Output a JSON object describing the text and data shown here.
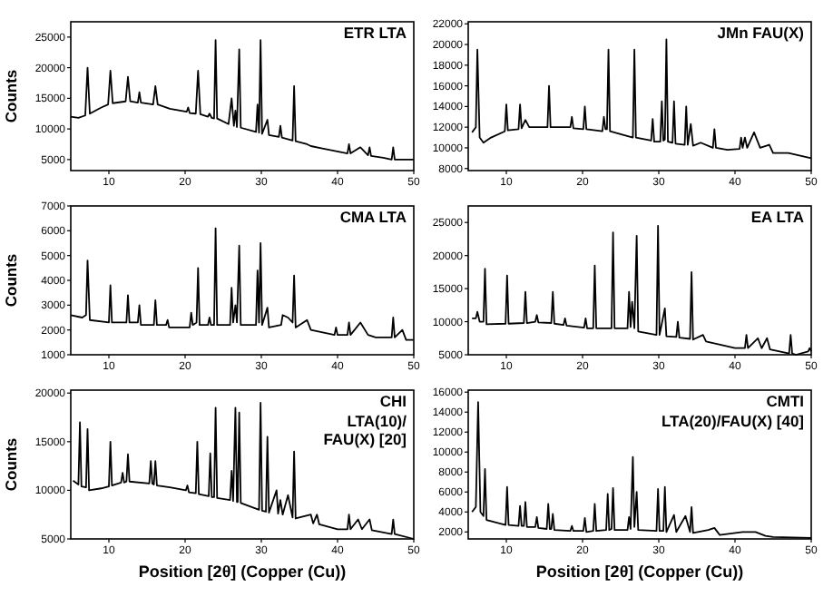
{
  "chart_data": [
    {
      "type": "line",
      "title": "ETR LTA",
      "ylabel": "Counts",
      "xlim": [
        5,
        50
      ],
      "xticks": [
        10,
        20,
        30,
        40,
        50
      ],
      "ylim": [
        3200,
        27500
      ],
      "yticks": [
        5000,
        10000,
        15000,
        20000,
        25000
      ],
      "grid": false,
      "series": [
        {
          "color": "#000000",
          "x": [
            5,
            6,
            6.9,
            7.2,
            7.5,
            9,
            9.9,
            10.2,
            10.5,
            12.2,
            12.5,
            12.8,
            13.8,
            14,
            14.2,
            15.8,
            16.1,
            16.4,
            18,
            20.2,
            20.4,
            20.6,
            21.4,
            21.7,
            22,
            23,
            23.2,
            23.5,
            23.8,
            24,
            24.2,
            25.7,
            26.1,
            26.4,
            26.6,
            26.8,
            27.1,
            27.3,
            29.3,
            29.5,
            29.7,
            29.9,
            30.1,
            30.8,
            31,
            32.3,
            32.5,
            32.7,
            34.1,
            34.3,
            34.5,
            36,
            36.5,
            38,
            41.3,
            41.5,
            41.7,
            43,
            44,
            44.2,
            44.4,
            46,
            47.1,
            47.3,
            47.5,
            50
          ],
          "values": [
            12000,
            11800,
            12200,
            20000,
            12500,
            13500,
            14000,
            19500,
            14200,
            14500,
            18500,
            14500,
            14300,
            16000,
            14300,
            14000,
            17000,
            14000,
            13300,
            12800,
            13500,
            12600,
            12500,
            19500,
            12400,
            12000,
            12500,
            11800,
            11700,
            24500,
            11700,
            10800,
            15000,
            10500,
            13000,
            10300,
            23000,
            10200,
            9500,
            14000,
            9400,
            24500,
            9200,
            11500,
            9000,
            8700,
            10500,
            8600,
            8100,
            17000,
            8000,
            7500,
            7200,
            6800,
            6000,
            7500,
            6000,
            7000,
            5700,
            7000,
            5600,
            5300,
            5000,
            7000,
            5000,
            5000
          ]
        }
      ]
    },
    {
      "type": "line",
      "title": "JMn FAU(X)",
      "xlim": [
        5,
        50
      ],
      "xticks": [
        10,
        20,
        30,
        40,
        50
      ],
      "ylim": [
        7800,
        22200
      ],
      "yticks": [
        8000,
        10000,
        12000,
        14000,
        16000,
        18000,
        20000,
        22000
      ],
      "grid": false,
      "series": [
        {
          "color": "#000000",
          "x": [
            5.5,
            6,
            6.2,
            6.5,
            7,
            8,
            9.8,
            10,
            10.2,
            11.6,
            11.8,
            12,
            12.5,
            13,
            15.4,
            15.6,
            15.8,
            18.4,
            18.6,
            18.8,
            20.1,
            20.3,
            20.5,
            22.6,
            22.8,
            23,
            23.2,
            23.4,
            23.6,
            26.6,
            26.8,
            27,
            29,
            29.2,
            29.4,
            30.2,
            30.4,
            30.6,
            30.8,
            31,
            31.2,
            31.8,
            32,
            32.2,
            33.4,
            33.6,
            33.8,
            34.2,
            34.5,
            35.5,
            37.1,
            37.3,
            37.5,
            39,
            40.6,
            40.8,
            41,
            41.3,
            41.6,
            42.5,
            43.3,
            44.5,
            45,
            47,
            50
          ],
          "values": [
            11500,
            12000,
            19500,
            11000,
            10500,
            11000,
            11600,
            14200,
            11700,
            11800,
            14200,
            11900,
            12700,
            12000,
            12000,
            16000,
            12000,
            12000,
            13000,
            11900,
            11800,
            14000,
            11800,
            11600,
            13000,
            11800,
            11800,
            19500,
            11600,
            11000,
            19500,
            11000,
            10700,
            12800,
            10600,
            10600,
            14500,
            10700,
            10800,
            20500,
            10600,
            10500,
            14500,
            10400,
            10300,
            14000,
            10300,
            12300,
            10200,
            10500,
            10000,
            11800,
            10000,
            9800,
            9900,
            11000,
            10000,
            11000,
            10000,
            11500,
            10000,
            10300,
            9500,
            9500,
            9000
          ]
        }
      ]
    },
    {
      "type": "line",
      "title": "CMA LTA",
      "ylabel": "Counts",
      "xlim": [
        5,
        50
      ],
      "xticks": [
        10,
        20,
        30,
        40,
        50
      ],
      "ylim": [
        1000,
        7000
      ],
      "yticks": [
        1000,
        2000,
        3000,
        4000,
        5000,
        6000,
        7000
      ],
      "grid": false,
      "series": [
        {
          "color": "#000000",
          "x": [
            5,
            6.5,
            7,
            7.2,
            7.5,
            10,
            10.2,
            10.4,
            12.3,
            12.5,
            12.7,
            13.8,
            14,
            14.2,
            15.9,
            16.1,
            16.3,
            17.5,
            17.7,
            17.9,
            20.6,
            20.8,
            21,
            21.5,
            21.7,
            21.9,
            23,
            23.2,
            23.4,
            23.8,
            24,
            24.2,
            25.9,
            26.1,
            26.3,
            26.6,
            26.8,
            27.1,
            27.3,
            29.3,
            29.5,
            29.7,
            29.9,
            30.1,
            30.8,
            31,
            32.6,
            32.8,
            33.5,
            34.1,
            34.3,
            34.5,
            36,
            36.5,
            39.6,
            39.8,
            40,
            41.3,
            41.5,
            41.7,
            43,
            44,
            45,
            47.1,
            47.3,
            47.5,
            48.5,
            49,
            50
          ],
          "values": [
            2600,
            2500,
            2600,
            4800,
            2400,
            2300,
            3800,
            2300,
            2300,
            3400,
            2300,
            2300,
            3000,
            2200,
            2200,
            3200,
            2200,
            2200,
            2400,
            2100,
            2100,
            2700,
            2200,
            2300,
            4500,
            2200,
            2200,
            2500,
            2200,
            2200,
            6100,
            2200,
            2200,
            3700,
            2300,
            3000,
            2300,
            5400,
            2200,
            2200,
            4400,
            2300,
            5500,
            2200,
            2900,
            2100,
            2200,
            2600,
            2500,
            2300,
            4200,
            2100,
            2400,
            2000,
            1800,
            2100,
            1800,
            1800,
            2300,
            1800,
            2300,
            1800,
            1700,
            1700,
            2500,
            1700,
            2000,
            1600,
            1600
          ]
        }
      ]
    },
    {
      "type": "line",
      "title": "EA LTA",
      "xlim": [
        5,
        50
      ],
      "xticks": [
        10,
        20,
        30,
        40,
        50
      ],
      "ylim": [
        5000,
        27500
      ],
      "yticks": [
        5000,
        10000,
        15000,
        20000,
        25000
      ],
      "grid": false,
      "series": [
        {
          "color": "#000000",
          "x": [
            5.5,
            6,
            6.2,
            6.5,
            7,
            7.2,
            7.4,
            9.9,
            10.1,
            10.3,
            12.3,
            12.5,
            12.7,
            13.8,
            14,
            14.2,
            15.9,
            16.1,
            16.3,
            17.5,
            17.7,
            17.9,
            20.2,
            20.4,
            20.6,
            21.4,
            21.6,
            21.8,
            23.8,
            24,
            24.2,
            25.9,
            26.1,
            26.3,
            26.5,
            26.8,
            27.1,
            27.3,
            29.7,
            29.9,
            30.1,
            30.8,
            31,
            32.3,
            32.5,
            32.7,
            34.1,
            34.3,
            34.5,
            35.8,
            36.2,
            40,
            41.3,
            41.5,
            41.7,
            43,
            43.5,
            44.2,
            44.6,
            47.1,
            47.3,
            47.5,
            48,
            49.6,
            49.8,
            50
          ],
          "values": [
            10500,
            10500,
            11500,
            10000,
            10000,
            18000,
            9600,
            9700,
            17000,
            9700,
            9800,
            14500,
            9800,
            10000,
            11000,
            9900,
            9800,
            14500,
            9700,
            9500,
            10500,
            9400,
            9100,
            10500,
            9000,
            9000,
            18500,
            9000,
            9000,
            23500,
            9000,
            9000,
            14500,
            9200,
            13000,
            9000,
            23000,
            8500,
            8000,
            24500,
            8000,
            12000,
            7800,
            7700,
            10000,
            7600,
            7400,
            17500,
            7300,
            8000,
            7000,
            6000,
            6000,
            8000,
            6000,
            7500,
            6000,
            7500,
            5800,
            5200,
            8000,
            5200,
            5000,
            5500,
            6000,
            5500
          ]
        }
      ]
    },
    {
      "type": "line",
      "title": "CHI",
      "subtitle": "LTA(10)/\nFAU(X) [20]",
      "ylabel": "Counts",
      "xlabel": "Position [2θ] (Copper (Cu))",
      "xlim": [
        5,
        50
      ],
      "xticks": [
        10,
        20,
        30,
        40,
        50
      ],
      "ylim": [
        5000,
        20300
      ],
      "yticks": [
        5000,
        10000,
        15000,
        20000
      ],
      "grid": false,
      "series": [
        {
          "color": "#000000",
          "x": [
            5.3,
            6,
            6.2,
            6.4,
            7,
            7.2,
            7.4,
            9,
            10,
            10.2,
            10.4,
            11.6,
            11.8,
            12,
            12.3,
            12.5,
            12.7,
            15.3,
            15.5,
            15.7,
            15.9,
            16.1,
            16.3,
            18,
            20.1,
            20.3,
            20.5,
            21.4,
            21.6,
            21.8,
            23.1,
            23.3,
            23.5,
            23.8,
            24,
            24.2,
            25.9,
            26.1,
            26.3,
            26.6,
            26.8,
            26.9,
            27.1,
            27.3,
            29.7,
            29.9,
            30.1,
            30.6,
            30.8,
            31,
            32,
            32.2,
            32.5,
            32.8,
            33.5,
            34.1,
            34.3,
            34.5,
            36.5,
            36.8,
            37.3,
            37.6,
            40,
            41.3,
            41.5,
            41.7,
            42.7,
            43.2,
            44.2,
            44.5,
            47.1,
            47.3,
            47.5,
            50
          ],
          "values": [
            11000,
            10600,
            17000,
            10400,
            10300,
            16300,
            10000,
            10200,
            10400,
            15000,
            10500,
            10800,
            11800,
            10800,
            10900,
            13700,
            10900,
            10700,
            13000,
            10700,
            10600,
            13000,
            10500,
            10300,
            10000,
            10500,
            9800,
            9700,
            15000,
            9600,
            9400,
            13800,
            9300,
            9300,
            18500,
            9200,
            9000,
            12000,
            8900,
            18500,
            8800,
            8800,
            18000,
            8700,
            8000,
            19000,
            7900,
            7800,
            15500,
            7700,
            10000,
            7600,
            9000,
            7500,
            9500,
            7200,
            14000,
            7100,
            7500,
            6600,
            7500,
            6500,
            6000,
            6000,
            7500,
            6000,
            7000,
            6000,
            7000,
            5900,
            5500,
            7000,
            5500,
            5000
          ]
        }
      ]
    },
    {
      "type": "line",
      "title": "CMTI",
      "subtitle": "LTA(20)/FAU(X) [40]",
      "xlabel": "Position [2θ] (Copper (Cu))",
      "xlim": [
        5,
        50
      ],
      "xticks": [
        10,
        20,
        30,
        40,
        50
      ],
      "ylim": [
        1300,
        16200
      ],
      "yticks": [
        2000,
        4000,
        6000,
        8000,
        10000,
        12000,
        14000,
        16000
      ],
      "grid": false,
      "series": [
        {
          "color": "#000000",
          "x": [
            5.5,
            6,
            6.3,
            6.6,
            7,
            7.2,
            7.4,
            9.9,
            10.1,
            10.3,
            11.6,
            11.8,
            12,
            12.3,
            12.5,
            12.7,
            13.8,
            14,
            14.2,
            15.3,
            15.5,
            15.7,
            15.9,
            16.1,
            16.3,
            18.4,
            18.6,
            18.8,
            20.1,
            20.3,
            20.5,
            21.4,
            21.6,
            21.8,
            23.1,
            23.3,
            23.5,
            23.8,
            24,
            24.2,
            25.9,
            26.1,
            26.3,
            26.6,
            26.8,
            27.1,
            27.3,
            29.7,
            29.9,
            30.1,
            30.6,
            30.8,
            31,
            32,
            32.3,
            33.5,
            34.1,
            34.3,
            34.5,
            36.5,
            37.3,
            38,
            41,
            42.7,
            44,
            45,
            50
          ],
          "values": [
            4000,
            4500,
            15000,
            4000,
            3600,
            8300,
            3200,
            2700,
            6500,
            2700,
            2600,
            4600,
            2600,
            2600,
            5000,
            2500,
            2500,
            3500,
            2400,
            2300,
            4800,
            2300,
            2300,
            3800,
            2200,
            2100,
            2600,
            2100,
            2100,
            3400,
            2000,
            2100,
            4800,
            2100,
            2200,
            5800,
            2200,
            2300,
            6400,
            2200,
            2200,
            3500,
            2300,
            9500,
            2500,
            6000,
            2200,
            2100,
            6300,
            2100,
            2100,
            6500,
            2000,
            3700,
            2000,
            3600,
            2000,
            4500,
            1900,
            2200,
            2400,
            1700,
            2000,
            2000,
            1600,
            1500,
            1400
          ]
        }
      ]
    }
  ]
}
